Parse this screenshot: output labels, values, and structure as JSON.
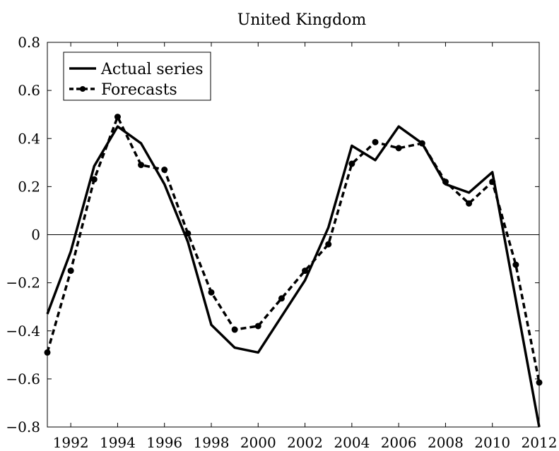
{
  "chart_data": {
    "type": "line",
    "title": "United Kingdom",
    "xlabel": "",
    "ylabel": "",
    "xlim": [
      1991,
      2012
    ],
    "ylim": [
      -0.8,
      0.8
    ],
    "x_ticks": [
      1992,
      1994,
      1996,
      1998,
      2000,
      2002,
      2004,
      2006,
      2008,
      2010,
      2012
    ],
    "y_ticks": [
      -0.8,
      -0.6,
      -0.4,
      -0.2,
      0,
      0.2,
      0.4,
      0.6,
      0.8
    ],
    "y_tick_labels": [
      "−0.8",
      "−0.6",
      "−0.4",
      "−0.2",
      "0",
      "0.2",
      "0.4",
      "0.6",
      "0.8"
    ],
    "zero_line": true,
    "grid": false,
    "legend_position": "top-left",
    "x": [
      1991,
      1992,
      1993,
      1994,
      1995,
      1996,
      1997,
      1998,
      1999,
      2000,
      2001,
      2002,
      2003,
      2004,
      2005,
      2006,
      2007,
      2008,
      2009,
      2010,
      2011,
      2012
    ],
    "series": [
      {
        "name": "Actual series",
        "style": "solid",
        "color": "#000000",
        "values": [
          -0.33,
          -0.07,
          0.285,
          0.45,
          0.38,
          0.21,
          -0.03,
          -0.375,
          -0.47,
          -0.49,
          -0.34,
          -0.19,
          0.03,
          0.37,
          0.31,
          0.45,
          0.38,
          0.21,
          0.175,
          0.26,
          -0.27,
          -0.8
        ]
      },
      {
        "name": "Forecasts",
        "style": "dashed",
        "color": "#000000",
        "values": [
          -0.49,
          -0.15,
          0.23,
          0.49,
          0.29,
          0.27,
          0.005,
          -0.24,
          -0.395,
          -0.38,
          -0.265,
          -0.15,
          -0.04,
          0.295,
          0.385,
          0.36,
          0.38,
          0.22,
          0.13,
          0.22,
          -0.125,
          -0.615
        ]
      }
    ]
  }
}
